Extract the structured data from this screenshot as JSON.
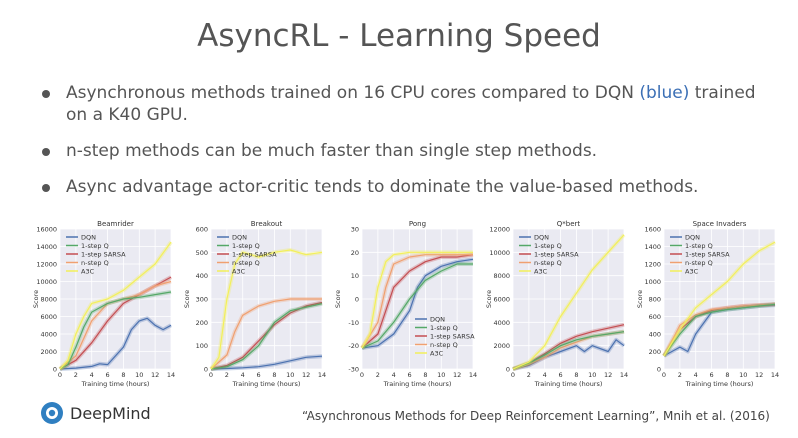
{
  "slide": {
    "title": "AsyncRL - Learning Speed",
    "bullets": [
      {
        "pre": "Asynchronous methods trained on 16 CPU cores compared to DQN ",
        "highlight": "(blue)",
        "post": " trained on a K40 GPU."
      },
      {
        "pre": "n-step methods can be much faster than single step methods.",
        "highlight": "",
        "post": ""
      },
      {
        "pre": "Async advantage actor-critic tends to dominate the value-based methods.",
        "highlight": "",
        "post": ""
      }
    ],
    "logo_text": "DeepMind",
    "citation": "“Asynchronous Methods for Deep Reinforcement Learning”, Mnih et al. (2016)"
  },
  "colors": {
    "DQN": "#4c72b0",
    "1-step Q": "#55a868",
    "1-step SARSA": "#c44e52",
    "n-step Q": "#f0a070",
    "A3C": "#f3f05a",
    "plot_bg": "#eaeaf2"
  },
  "chart_data": [
    {
      "type": "line",
      "title": "Beamrider",
      "xlabel": "Training time (hours)",
      "ylabel": "Score",
      "xlim": [
        0,
        14
      ],
      "ylim": [
        0,
        16000
      ],
      "xticks": [
        0,
        2,
        4,
        6,
        8,
        10,
        12,
        14
      ],
      "yticks": [
        0,
        2000,
        4000,
        6000,
        8000,
        10000,
        12000,
        14000,
        16000
      ],
      "legend_position": "upper-left",
      "series": [
        {
          "name": "DQN",
          "x": [
            0,
            2,
            4,
            5,
            6,
            8,
            9,
            10,
            11,
            12,
            13,
            14
          ],
          "y": [
            0,
            100,
            300,
            600,
            500,
            2500,
            4500,
            5500,
            5800,
            5000,
            4500,
            5000
          ]
        },
        {
          "name": "1-step Q",
          "x": [
            0,
            1,
            2,
            3,
            4,
            6,
            8,
            10,
            12,
            14
          ],
          "y": [
            0,
            500,
            2500,
            4800,
            6500,
            7500,
            8000,
            8200,
            8500,
            8800
          ]
        },
        {
          "name": "1-step SARSA",
          "x": [
            0,
            2,
            4,
            6,
            8,
            10,
            12,
            14
          ],
          "y": [
            0,
            1000,
            3000,
            5500,
            7500,
            8500,
            9500,
            10500
          ]
        },
        {
          "name": "n-step Q",
          "x": [
            0,
            2,
            3,
            4,
            6,
            8,
            10,
            12,
            14
          ],
          "y": [
            0,
            1500,
            3500,
            5500,
            7500,
            8000,
            8500,
            9500,
            10000
          ]
        },
        {
          "name": "A3C",
          "x": [
            0,
            1,
            2,
            3,
            4,
            6,
            8,
            10,
            12,
            14
          ],
          "y": [
            0,
            1000,
            4000,
            6000,
            7500,
            8000,
            9000,
            10500,
            12000,
            14500
          ]
        }
      ]
    },
    {
      "type": "line",
      "title": "Breakout",
      "xlabel": "Training time (hours)",
      "ylabel": "Score",
      "xlim": [
        0,
        14
      ],
      "ylim": [
        0,
        600
      ],
      "xticks": [
        0,
        2,
        4,
        6,
        8,
        10,
        12,
        14
      ],
      "yticks": [
        0,
        100,
        200,
        300,
        400,
        500,
        600
      ],
      "legend_position": "upper-left",
      "series": [
        {
          "name": "DQN",
          "x": [
            0,
            2,
            4,
            6,
            8,
            10,
            12,
            14
          ],
          "y": [
            0,
            2,
            5,
            10,
            20,
            35,
            50,
            55
          ]
        },
        {
          "name": "1-step Q",
          "x": [
            0,
            2,
            4,
            6,
            7,
            8,
            10,
            12,
            14
          ],
          "y": [
            0,
            10,
            40,
            100,
            150,
            200,
            250,
            265,
            280
          ]
        },
        {
          "name": "1-step SARSA",
          "x": [
            0,
            2,
            4,
            6,
            8,
            10,
            12,
            14
          ],
          "y": [
            0,
            15,
            50,
            120,
            190,
            240,
            270,
            285
          ]
        },
        {
          "name": "n-step Q",
          "x": [
            0,
            2,
            3,
            4,
            6,
            8,
            10,
            12,
            14
          ],
          "y": [
            0,
            60,
            160,
            230,
            270,
            290,
            300,
            300,
            300
          ]
        },
        {
          "name": "A3C",
          "x": [
            0,
            1,
            2,
            3,
            4,
            6,
            8,
            10,
            12,
            14
          ],
          "y": [
            0,
            50,
            300,
            450,
            500,
            480,
            500,
            510,
            490,
            500
          ]
        }
      ]
    },
    {
      "type": "line",
      "title": "Pong",
      "xlabel": "Training time (hours)",
      "ylabel": "Score",
      "xlim": [
        0,
        14
      ],
      "ylim": [
        -30,
        30
      ],
      "xticks": [
        0,
        2,
        4,
        6,
        8,
        10,
        12,
        14
      ],
      "yticks": [
        -30,
        -20,
        -10,
        0,
        10,
        20,
        30
      ],
      "legend_position": "lower-right",
      "series": [
        {
          "name": "DQN",
          "x": [
            0,
            2,
            4,
            6,
            7,
            8,
            10,
            12,
            14
          ],
          "y": [
            -21,
            -20,
            -15,
            -5,
            5,
            10,
            14,
            16,
            17
          ]
        },
        {
          "name": "1-step Q",
          "x": [
            0,
            2,
            4,
            6,
            8,
            10,
            12,
            14
          ],
          "y": [
            -21,
            -18,
            -10,
            0,
            8,
            12,
            15,
            15
          ]
        },
        {
          "name": "1-step SARSA",
          "x": [
            0,
            2,
            3,
            4,
            6,
            8,
            10,
            12,
            14
          ],
          "y": [
            -21,
            -15,
            -5,
            5,
            12,
            16,
            18,
            18,
            19
          ]
        },
        {
          "name": "n-step Q",
          "x": [
            0,
            2,
            3,
            4,
            6,
            8,
            10,
            12,
            14
          ],
          "y": [
            -21,
            -10,
            5,
            15,
            18,
            19,
            19,
            19,
            19
          ]
        },
        {
          "name": "A3C",
          "x": [
            0,
            1,
            2,
            3,
            4,
            6,
            8,
            10,
            12,
            14
          ],
          "y": [
            -21,
            -15,
            5,
            16,
            19,
            20,
            20,
            20,
            20,
            20
          ]
        }
      ]
    },
    {
      "type": "line",
      "title": "Q*bert",
      "xlabel": "Training time (hours)",
      "ylabel": "Score",
      "xlim": [
        0,
        14
      ],
      "ylim": [
        0,
        12000
      ],
      "xticks": [
        0,
        2,
        4,
        6,
        8,
        10,
        12,
        14
      ],
      "yticks": [
        0,
        2000,
        4000,
        6000,
        8000,
        10000,
        12000
      ],
      "legend_position": "upper-left",
      "series": [
        {
          "name": "DQN",
          "x": [
            0,
            2,
            4,
            6,
            8,
            9,
            10,
            12,
            13,
            14
          ],
          "y": [
            0,
            300,
            1000,
            1500,
            2000,
            1500,
            2000,
            1500,
            2500,
            2000
          ]
        },
        {
          "name": "1-step Q",
          "x": [
            0,
            2,
            4,
            6,
            8,
            10,
            12,
            14
          ],
          "y": [
            0,
            500,
            1200,
            2000,
            2500,
            2800,
            3000,
            3200
          ]
        },
        {
          "name": "1-step SARSA",
          "x": [
            0,
            2,
            4,
            6,
            8,
            10,
            12,
            14
          ],
          "y": [
            0,
            500,
            1300,
            2200,
            2800,
            3200,
            3500,
            3800
          ]
        },
        {
          "name": "n-step Q",
          "x": [
            0,
            2,
            4,
            6,
            8,
            10,
            12,
            14
          ],
          "y": [
            0,
            400,
            1000,
            1800,
            2300,
            2800,
            3000,
            3200
          ]
        },
        {
          "name": "A3C",
          "x": [
            0,
            2,
            4,
            6,
            8,
            10,
            12,
            14
          ],
          "y": [
            0,
            600,
            2000,
            4500,
            6500,
            8500,
            10000,
            11500
          ]
        }
      ]
    },
    {
      "type": "line",
      "title": "Space Invaders",
      "xlabel": "Training time (hours)",
      "ylabel": "Score",
      "xlim": [
        0,
        14
      ],
      "ylim": [
        0,
        1600
      ],
      "xticks": [
        0,
        2,
        4,
        6,
        8,
        10,
        12,
        14
      ],
      "yticks": [
        0,
        200,
        400,
        600,
        800,
        1000,
        1200,
        1400,
        1600
      ],
      "legend_position": "upper-left",
      "series": [
        {
          "name": "DQN",
          "x": [
            0,
            1,
            2,
            3,
            4,
            6,
            8,
            10,
            12,
            14
          ],
          "y": [
            150,
            200,
            250,
            200,
            400,
            650,
            680,
            700,
            720,
            730
          ]
        },
        {
          "name": "1-step Q",
          "x": [
            0,
            2,
            4,
            6,
            8,
            10,
            12,
            14
          ],
          "y": [
            150,
            400,
            600,
            650,
            680,
            700,
            720,
            740
          ]
        },
        {
          "name": "1-step SARSA",
          "x": [
            0,
            2,
            4,
            6,
            8,
            10,
            12,
            14
          ],
          "y": [
            150,
            450,
            600,
            670,
            700,
            720,
            730,
            740
          ]
        },
        {
          "name": "n-step Q",
          "x": [
            0,
            2,
            4,
            6,
            8,
            10,
            12,
            14
          ],
          "y": [
            150,
            500,
            620,
            680,
            700,
            720,
            730,
            740
          ]
        },
        {
          "name": "A3C",
          "x": [
            0,
            2,
            4,
            6,
            8,
            10,
            12,
            14
          ],
          "y": [
            150,
            450,
            700,
            850,
            1000,
            1200,
            1350,
            1450
          ]
        }
      ]
    }
  ]
}
